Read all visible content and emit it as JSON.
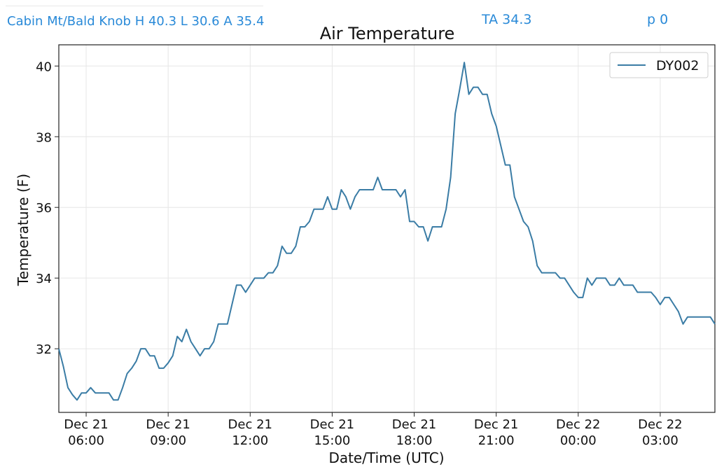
{
  "header": {
    "station_summary": "Cabin Mt/Bald Knob H 40.3 L 30.6 A 35.4",
    "ta": "TA 34.3",
    "p": "p 0"
  },
  "colors": {
    "header_text": "#2a8ad8",
    "series": "#3a7ca5"
  },
  "chart_data": {
    "type": "line",
    "title": "Air Temperature",
    "xlabel": "Date/Time (UTC)",
    "ylabel": "Temperature (F)",
    "grid": true,
    "legend_position": "top-right",
    "ylim": [
      30.2,
      40.6
    ],
    "xlim": [
      "2024-12-21 05:00",
      "2024-12-22 05:00"
    ],
    "yticks": [
      32,
      34,
      36,
      38,
      40
    ],
    "xticks": [
      {
        "t": "2024-12-21 06:00",
        "line1": "Dec 21",
        "line2": "06:00"
      },
      {
        "t": "2024-12-21 09:00",
        "line1": "Dec 21",
        "line2": "09:00"
      },
      {
        "t": "2024-12-21 12:00",
        "line1": "Dec 21",
        "line2": "12:00"
      },
      {
        "t": "2024-12-21 15:00",
        "line1": "Dec 21",
        "line2": "15:00"
      },
      {
        "t": "2024-12-21 18:00",
        "line1": "Dec 21",
        "line2": "18:00"
      },
      {
        "t": "2024-12-21 21:00",
        "line1": "Dec 21",
        "line2": "21:00"
      },
      {
        "t": "2024-12-22 00:00",
        "line1": "Dec 22",
        "line2": "00:00"
      },
      {
        "t": "2024-12-22 03:00",
        "line1": "Dec 22",
        "line2": "03:00"
      }
    ],
    "series": [
      {
        "name": "DY002",
        "points": [
          [
            "2024-12-21 05:00",
            32.0
          ],
          [
            "2024-12-21 05:10",
            31.5
          ],
          [
            "2024-12-21 05:20",
            30.9
          ],
          [
            "2024-12-21 05:30",
            30.7
          ],
          [
            "2024-12-21 05:40",
            30.55
          ],
          [
            "2024-12-21 05:50",
            30.75
          ],
          [
            "2024-12-21 06:00",
            30.75
          ],
          [
            "2024-12-21 06:10",
            30.9
          ],
          [
            "2024-12-21 06:20",
            30.75
          ],
          [
            "2024-12-21 06:30",
            30.75
          ],
          [
            "2024-12-21 06:40",
            30.75
          ],
          [
            "2024-12-21 06:50",
            30.75
          ],
          [
            "2024-12-21 07:00",
            30.55
          ],
          [
            "2024-12-21 07:10",
            30.55
          ],
          [
            "2024-12-21 07:20",
            30.9
          ],
          [
            "2024-12-21 07:30",
            31.3
          ],
          [
            "2024-12-21 07:40",
            31.45
          ],
          [
            "2024-12-21 07:50",
            31.65
          ],
          [
            "2024-12-21 08:00",
            32.0
          ],
          [
            "2024-12-21 08:10",
            32.0
          ],
          [
            "2024-12-21 08:20",
            31.8
          ],
          [
            "2024-12-21 08:30",
            31.8
          ],
          [
            "2024-12-21 08:40",
            31.45
          ],
          [
            "2024-12-21 08:50",
            31.45
          ],
          [
            "2024-12-21 09:00",
            31.6
          ],
          [
            "2024-12-21 09:10",
            31.8
          ],
          [
            "2024-12-21 09:20",
            32.35
          ],
          [
            "2024-12-21 09:30",
            32.2
          ],
          [
            "2024-12-21 09:40",
            32.55
          ],
          [
            "2024-12-21 09:50",
            32.2
          ],
          [
            "2024-12-21 10:00",
            32.0
          ],
          [
            "2024-12-21 10:10",
            31.8
          ],
          [
            "2024-12-21 10:20",
            32.0
          ],
          [
            "2024-12-21 10:30",
            32.0
          ],
          [
            "2024-12-21 10:40",
            32.2
          ],
          [
            "2024-12-21 10:50",
            32.7
          ],
          [
            "2024-12-21 11:00",
            32.7
          ],
          [
            "2024-12-21 11:10",
            32.7
          ],
          [
            "2024-12-21 11:20",
            33.25
          ],
          [
            "2024-12-21 11:30",
            33.8
          ],
          [
            "2024-12-21 11:40",
            33.8
          ],
          [
            "2024-12-21 11:50",
            33.6
          ],
          [
            "2024-12-21 12:00",
            33.8
          ],
          [
            "2024-12-21 12:10",
            34.0
          ],
          [
            "2024-12-21 12:20",
            34.0
          ],
          [
            "2024-12-21 12:30",
            34.0
          ],
          [
            "2024-12-21 12:40",
            34.15
          ],
          [
            "2024-12-21 12:50",
            34.15
          ],
          [
            "2024-12-21 13:00",
            34.35
          ],
          [
            "2024-12-21 13:10",
            34.9
          ],
          [
            "2024-12-21 13:20",
            34.7
          ],
          [
            "2024-12-21 13:30",
            34.7
          ],
          [
            "2024-12-21 13:40",
            34.9
          ],
          [
            "2024-12-21 13:50",
            35.45
          ],
          [
            "2024-12-21 14:00",
            35.45
          ],
          [
            "2024-12-21 14:10",
            35.6
          ],
          [
            "2024-12-21 14:20",
            35.95
          ],
          [
            "2024-12-21 14:30",
            35.95
          ],
          [
            "2024-12-21 14:40",
            35.95
          ],
          [
            "2024-12-21 14:50",
            36.3
          ],
          [
            "2024-12-21 15:00",
            35.95
          ],
          [
            "2024-12-21 15:10",
            35.95
          ],
          [
            "2024-12-21 15:20",
            36.5
          ],
          [
            "2024-12-21 15:30",
            36.3
          ],
          [
            "2024-12-21 15:40",
            35.95
          ],
          [
            "2024-12-21 15:50",
            36.3
          ],
          [
            "2024-12-21 16:00",
            36.5
          ],
          [
            "2024-12-21 16:10",
            36.5
          ],
          [
            "2024-12-21 16:20",
            36.5
          ],
          [
            "2024-12-21 16:30",
            36.5
          ],
          [
            "2024-12-21 16:40",
            36.85
          ],
          [
            "2024-12-21 16:50",
            36.5
          ],
          [
            "2024-12-21 17:00",
            36.5
          ],
          [
            "2024-12-21 17:10",
            36.5
          ],
          [
            "2024-12-21 17:20",
            36.5
          ],
          [
            "2024-12-21 17:30",
            36.3
          ],
          [
            "2024-12-21 17:40",
            36.5
          ],
          [
            "2024-12-21 17:50",
            35.6
          ],
          [
            "2024-12-21 18:00",
            35.6
          ],
          [
            "2024-12-21 18:10",
            35.45
          ],
          [
            "2024-12-21 18:20",
            35.45
          ],
          [
            "2024-12-21 18:30",
            35.05
          ],
          [
            "2024-12-21 18:40",
            35.45
          ],
          [
            "2024-12-21 18:50",
            35.45
          ],
          [
            "2024-12-21 19:00",
            35.45
          ],
          [
            "2024-12-21 19:10",
            35.95
          ],
          [
            "2024-12-21 19:20",
            36.85
          ],
          [
            "2024-12-21 19:30",
            38.65
          ],
          [
            "2024-12-21 19:40",
            39.35
          ],
          [
            "2024-12-21 19:50",
            40.1
          ],
          [
            "2024-12-21 20:00",
            39.2
          ],
          [
            "2024-12-21 20:10",
            39.4
          ],
          [
            "2024-12-21 20:20",
            39.4
          ],
          [
            "2024-12-21 20:30",
            39.2
          ],
          [
            "2024-12-21 20:40",
            39.2
          ],
          [
            "2024-12-21 20:50",
            38.65
          ],
          [
            "2024-12-21 21:00",
            38.3
          ],
          [
            "2024-12-21 21:10",
            37.75
          ],
          [
            "2024-12-21 21:20",
            37.2
          ],
          [
            "2024-12-21 21:30",
            37.2
          ],
          [
            "2024-12-21 21:40",
            36.3
          ],
          [
            "2024-12-21 21:50",
            35.95
          ],
          [
            "2024-12-21 22:00",
            35.6
          ],
          [
            "2024-12-21 22:10",
            35.45
          ],
          [
            "2024-12-21 22:20",
            35.05
          ],
          [
            "2024-12-21 22:30",
            34.35
          ],
          [
            "2024-12-21 22:40",
            34.15
          ],
          [
            "2024-12-21 22:50",
            34.15
          ],
          [
            "2024-12-21 23:00",
            34.15
          ],
          [
            "2024-12-21 23:10",
            34.15
          ],
          [
            "2024-12-21 23:20",
            34.0
          ],
          [
            "2024-12-21 23:30",
            34.0
          ],
          [
            "2024-12-21 23:40",
            33.8
          ],
          [
            "2024-12-21 23:50",
            33.6
          ],
          [
            "2024-12-22 00:00",
            33.45
          ],
          [
            "2024-12-22 00:10",
            33.45
          ],
          [
            "2024-12-22 00:20",
            34.0
          ],
          [
            "2024-12-22 00:30",
            33.8
          ],
          [
            "2024-12-22 00:40",
            34.0
          ],
          [
            "2024-12-22 00:50",
            34.0
          ],
          [
            "2024-12-22 01:00",
            34.0
          ],
          [
            "2024-12-22 01:10",
            33.8
          ],
          [
            "2024-12-22 01:20",
            33.8
          ],
          [
            "2024-12-22 01:30",
            34.0
          ],
          [
            "2024-12-22 01:40",
            33.8
          ],
          [
            "2024-12-22 01:50",
            33.8
          ],
          [
            "2024-12-22 02:00",
            33.8
          ],
          [
            "2024-12-22 02:10",
            33.6
          ],
          [
            "2024-12-22 02:20",
            33.6
          ],
          [
            "2024-12-22 02:30",
            33.6
          ],
          [
            "2024-12-22 02:40",
            33.6
          ],
          [
            "2024-12-22 02:50",
            33.45
          ],
          [
            "2024-12-22 03:00",
            33.25
          ],
          [
            "2024-12-22 03:10",
            33.45
          ],
          [
            "2024-12-22 03:20",
            33.45
          ],
          [
            "2024-12-22 03:30",
            33.25
          ],
          [
            "2024-12-22 03:40",
            33.05
          ],
          [
            "2024-12-22 03:50",
            32.7
          ],
          [
            "2024-12-22 04:00",
            32.9
          ],
          [
            "2024-12-22 04:10",
            32.9
          ],
          [
            "2024-12-22 04:20",
            32.9
          ],
          [
            "2024-12-22 04:30",
            32.9
          ],
          [
            "2024-12-22 04:40",
            32.9
          ],
          [
            "2024-12-22 04:50",
            32.9
          ],
          [
            "2024-12-22 05:00",
            32.7
          ]
        ]
      }
    ]
  }
}
